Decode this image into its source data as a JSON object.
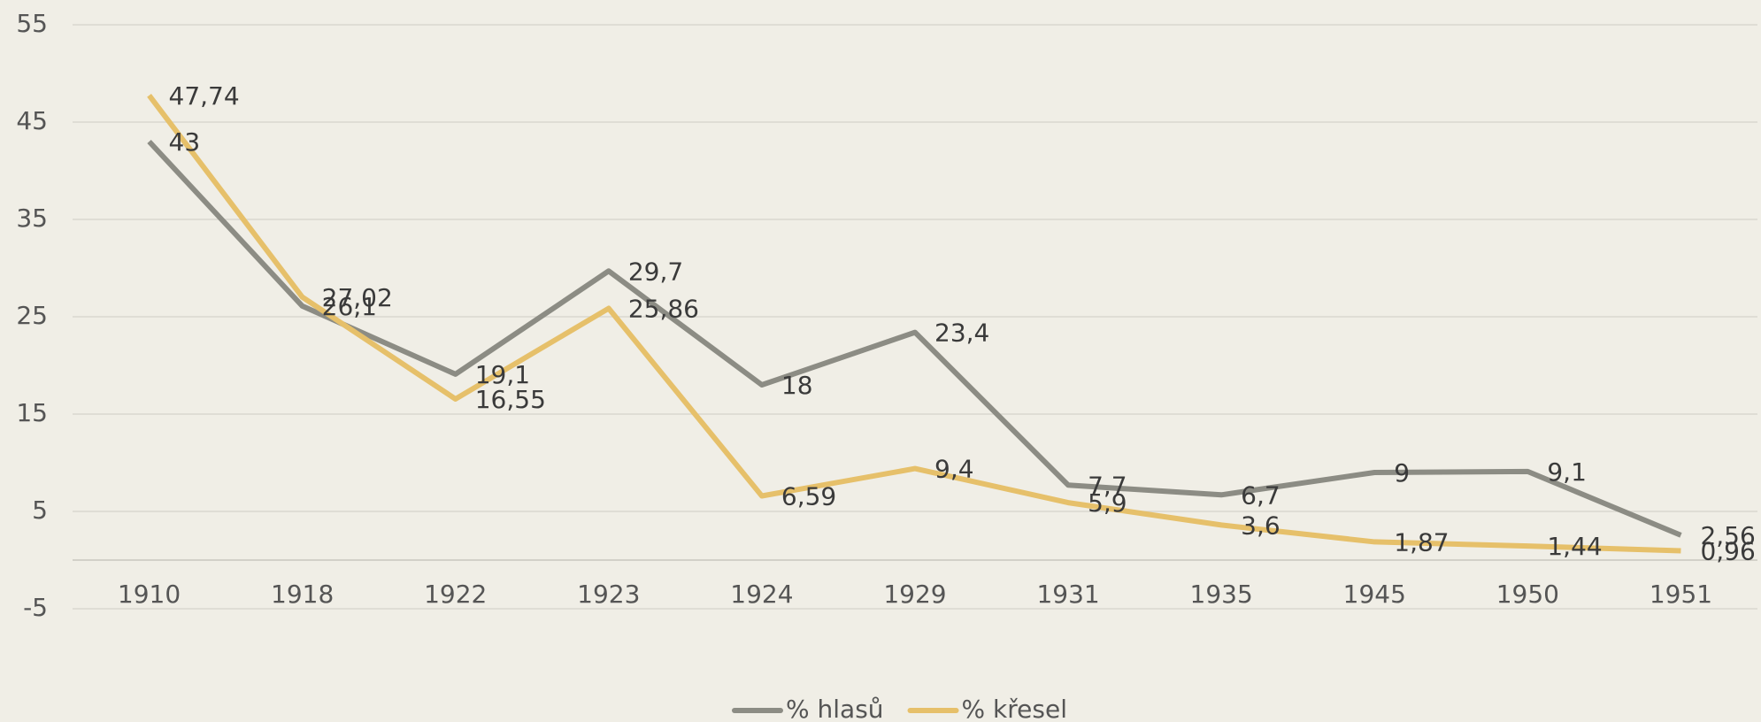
{
  "chart_data": {
    "type": "line",
    "categories": [
      "1910",
      "1918",
      "1922",
      "1923",
      "1924",
      "1929",
      "1931",
      "1935",
      "1945",
      "1950",
      "1951"
    ],
    "series": [
      {
        "name": "% hlasů",
        "color": "#8c8c84",
        "values": [
          43,
          26.1,
          19.1,
          29.7,
          18,
          23.4,
          7.7,
          6.7,
          9,
          9.1,
          2.56
        ],
        "value_labels": [
          "43",
          "26,1",
          "19,1",
          "29,7",
          "18",
          "23,4",
          "7,7",
          "6,7",
          "9",
          "9,1",
          "2,56"
        ]
      },
      {
        "name": "% křesel",
        "color": "#e6c06a",
        "values": [
          47.74,
          27.02,
          16.55,
          25.86,
          6.59,
          9.4,
          5.9,
          3.6,
          1.87,
          1.44,
          0.96
        ],
        "value_labels": [
          "47,74",
          "27,02",
          "16,55",
          "25,86",
          "6,59",
          "9,4",
          "5,9",
          "3,6",
          "1,87",
          "1,44",
          "0,96"
        ]
      }
    ],
    "ylim": [
      -5,
      55
    ],
    "yticks": [
      -5,
      5,
      15,
      25,
      35,
      45,
      55
    ],
    "grid": true,
    "legend": "bottom"
  }
}
